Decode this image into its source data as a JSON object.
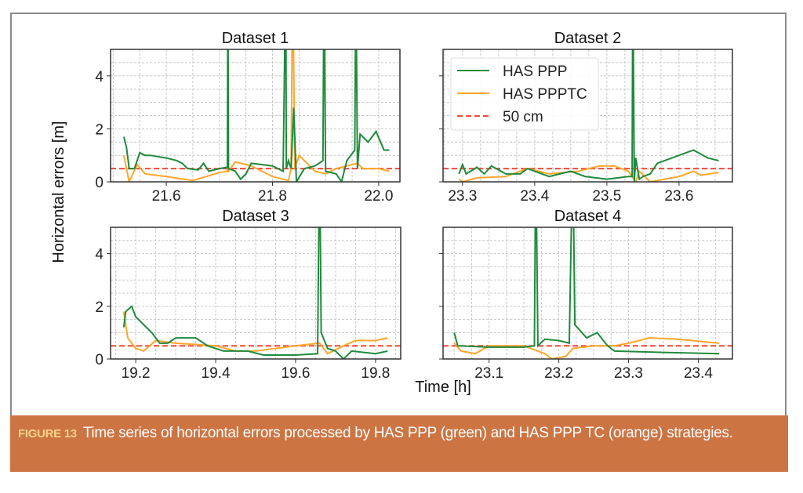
{
  "chart_data": {
    "type": "line",
    "ylabel": "Horizontal errors [m]",
    "xlabel": "Time [h]",
    "legend": {
      "placement": "upper-left of Dataset 2",
      "entries": [
        "HAS PPP",
        "HAS PPPTC",
        "50 cm"
      ]
    },
    "colors": {
      "ppp": "#1f8a3c",
      "ppptc": "#ffa62b",
      "threshold": "#f04a3a"
    },
    "threshold": 0.5,
    "grid": true,
    "panels": [
      {
        "title": "Dataset 1",
        "xlim": [
          21.495,
          22.04
        ],
        "ylim": [
          0,
          5
        ],
        "xticks": [
          21.6,
          21.8,
          22.0
        ],
        "xtick_labels": [
          "21.6",
          "21.8",
          "22.0"
        ],
        "yticks": [
          0,
          2,
          4
        ],
        "ytick_labels": [
          "0",
          "2",
          "4"
        ],
        "series": [
          {
            "name": "HAS PPP",
            "x": [
              21.52,
              21.525,
              21.53,
              21.54,
              21.55,
              21.56,
              21.57,
              21.6,
              21.62,
              21.63,
              21.64,
              21.66,
              21.67,
              21.68,
              21.7,
              21.715,
              21.716,
              21.717,
              21.73,
              21.74,
              21.75,
              21.76,
              21.78,
              21.8,
              21.82,
              21.825,
              21.826,
              21.83,
              21.835,
              21.84,
              21.845,
              21.86,
              21.88,
              21.895,
              21.897,
              21.9,
              21.92,
              21.93,
              21.94,
              21.955,
              21.957,
              21.96,
              21.965,
              21.98,
              21.995,
              22.01,
              22.02
            ],
            "y": [
              1.7,
              1.3,
              0.5,
              0.5,
              1.1,
              1.0,
              1.0,
              0.9,
              0.8,
              0.7,
              0.5,
              0.45,
              0.7,
              0.4,
              0.5,
              0.55,
              8,
              0.5,
              0.4,
              0.1,
              0.3,
              0.7,
              0.65,
              0.6,
              0.4,
              8,
              0.5,
              0.8,
              0.5,
              2.8,
              0.0,
              0.5,
              0.6,
              0.8,
              8,
              0.4,
              0.3,
              0.0,
              0.8,
              1.2,
              8,
              0.5,
              1.8,
              1.5,
              1.9,
              1.2,
              1.2
            ]
          },
          {
            "name": "HAS PPPTC",
            "x": [
              21.52,
              21.53,
              21.545,
              21.56,
              21.6,
              21.65,
              21.7,
              21.715,
              21.716,
              21.717,
              21.73,
              21.76,
              21.8,
              21.83,
              21.835,
              21.838,
              21.842,
              21.85,
              21.88,
              21.9,
              21.92,
              21.96,
              21.97,
              22.0,
              22.02
            ],
            "y": [
              1.0,
              0.0,
              0.65,
              0.3,
              0.2,
              0.05,
              0.35,
              0.4,
              2.6,
              0.4,
              0.75,
              0.6,
              0.2,
              0.05,
              0.5,
              8,
              0.5,
              1.0,
              0.4,
              0.3,
              0.5,
              0.7,
              0.5,
              0.5,
              0.4
            ]
          }
        ]
      },
      {
        "title": "Dataset 2",
        "xlim": [
          23.273,
          23.674
        ],
        "ylim": [
          0,
          5
        ],
        "xticks": [
          23.3,
          23.4,
          23.5,
          23.6
        ],
        "xtick_labels": [
          "23.3",
          "23.4",
          "23.5",
          "23.6"
        ],
        "yticks": [
          0,
          2,
          4
        ],
        "ytick_labels": [],
        "series": [
          {
            "name": "HAS PPP",
            "x": [
              23.295,
              23.3,
              23.305,
              23.32,
              23.33,
              23.34,
              23.36,
              23.38,
              23.39,
              23.42,
              23.45,
              23.47,
              23.5,
              23.53,
              23.535,
              23.536,
              23.538,
              23.54,
              23.545,
              23.55,
              23.56,
              23.57,
              23.6,
              23.62,
              23.64,
              23.655
            ],
            "y": [
              0.3,
              0.65,
              0.3,
              0.55,
              0.3,
              0.6,
              0.3,
              0.3,
              0.5,
              0.2,
              0.4,
              0.2,
              0.1,
              0.2,
              0.2,
              8,
              0.0,
              0.9,
              0.1,
              0.2,
              0.3,
              0.7,
              1.0,
              1.2,
              0.9,
              0.8
            ]
          },
          {
            "name": "HAS PPPTC",
            "x": [
              23.295,
              23.3,
              23.32,
              23.36,
              23.39,
              23.42,
              23.46,
              23.49,
              23.51,
              23.53,
              23.54,
              23.545,
              23.56,
              23.6,
              23.62,
              23.63,
              23.655
            ],
            "y": [
              0.1,
              0.0,
              0.15,
              0.2,
              0.5,
              0.3,
              0.4,
              0.6,
              0.6,
              0.4,
              0.0,
              0.4,
              0.0,
              0.2,
              0.4,
              0.25,
              0.35
            ]
          }
        ]
      },
      {
        "title": "Dataset 3",
        "xlim": [
          19.137,
          19.863
        ],
        "ylim": [
          0,
          5
        ],
        "xticks": [
          19.2,
          19.4,
          19.6,
          19.8
        ],
        "xtick_labels": [
          "19.2",
          "19.4",
          "19.6",
          "19.8"
        ],
        "yticks": [
          0,
          2,
          4
        ],
        "ytick_labels": [
          "0",
          "2",
          "4"
        ],
        "series": [
          {
            "name": "HAS PPP",
            "x": [
              19.17,
              19.175,
              19.19,
              19.2,
              19.24,
              19.26,
              19.28,
              19.3,
              19.35,
              19.38,
              19.42,
              19.48,
              19.52,
              19.6,
              19.655,
              19.66,
              19.664,
              19.68,
              19.7,
              19.72,
              19.74,
              19.8,
              19.83
            ],
            "y": [
              1.2,
              1.8,
              2.0,
              1.6,
              1.0,
              0.6,
              0.6,
              0.8,
              0.8,
              0.5,
              0.3,
              0.3,
              0.15,
              0.15,
              0.2,
              8,
              1.0,
              0.4,
              0.3,
              0.0,
              0.3,
              0.2,
              0.3
            ]
          },
          {
            "name": "HAS PPPTC",
            "x": [
              19.17,
              19.18,
              19.2,
              19.22,
              19.25,
              19.3,
              19.4,
              19.45,
              19.5,
              19.55,
              19.6,
              19.66,
              19.68,
              19.72,
              19.75,
              19.8,
              19.83
            ],
            "y": [
              1.8,
              0.8,
              0.4,
              0.3,
              0.7,
              0.6,
              0.5,
              0.3,
              0.3,
              0.4,
              0.5,
              0.6,
              0.2,
              0.5,
              0.7,
              0.7,
              0.8
            ]
          }
        ]
      },
      {
        "title": "Dataset 4",
        "xlim": [
          23.034,
          23.449
        ],
        "ylim": [
          0,
          5
        ],
        "xticks": [
          23.1,
          23.2,
          23.3,
          23.4
        ],
        "xtick_labels": [
          "23.1",
          "23.2",
          "23.3",
          "23.4"
        ],
        "yticks": [
          0,
          2,
          4
        ],
        "ytick_labels": [],
        "series": [
          {
            "name": "HAS PPP",
            "x": [
              23.05,
              23.055,
              23.1,
              23.15,
              23.165,
              23.167,
              23.17,
              23.18,
              23.2,
              23.215,
              23.22,
              23.223,
              23.24,
              23.255,
              23.27,
              23.28,
              23.35,
              23.43
            ],
            "y": [
              1.0,
              0.5,
              0.45,
              0.45,
              0.5,
              8,
              0.5,
              0.75,
              0.7,
              0.6,
              8,
              1.3,
              0.8,
              1.0,
              0.5,
              0.3,
              0.25,
              0.2
            ]
          },
          {
            "name": "HAS PPPTC",
            "x": [
              23.05,
              23.06,
              23.08,
              23.1,
              23.15,
              23.18,
              23.19,
              23.21,
              23.22,
              23.25,
              23.28,
              23.3,
              23.33,
              23.37,
              23.43
            ],
            "y": [
              0.6,
              0.3,
              0.2,
              0.5,
              0.5,
              0.2,
              0.0,
              0.1,
              0.4,
              0.5,
              0.5,
              0.6,
              0.8,
              0.75,
              0.6
            ]
          }
        ]
      }
    ]
  },
  "caption": {
    "label": "FIGURE 13",
    "text": "Time series of horizontal errors processed by HAS PPP (green) and HAS PPP TC (orange) strategies."
  }
}
